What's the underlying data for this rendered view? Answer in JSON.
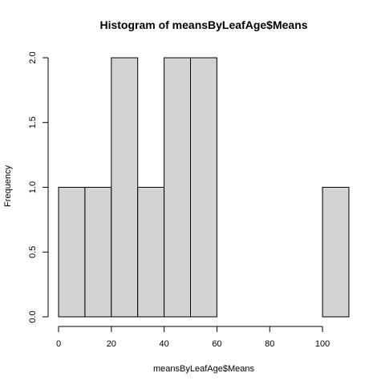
{
  "chart_data": {
    "type": "bar",
    "subtype": "histogram",
    "title": "Histogram of meansByLeafAge$Means",
    "xlabel": "meansByLeafAge$Means",
    "ylabel": "Frequency",
    "bins": [
      {
        "start": 0,
        "end": 10,
        "count": 1
      },
      {
        "start": 10,
        "end": 20,
        "count": 1
      },
      {
        "start": 20,
        "end": 30,
        "count": 2
      },
      {
        "start": 30,
        "end": 40,
        "count": 1
      },
      {
        "start": 40,
        "end": 50,
        "count": 2
      },
      {
        "start": 50,
        "end": 60,
        "count": 2
      },
      {
        "start": 60,
        "end": 70,
        "count": 0
      },
      {
        "start": 70,
        "end": 80,
        "count": 0
      },
      {
        "start": 80,
        "end": 90,
        "count": 0
      },
      {
        "start": 90,
        "end": 100,
        "count": 0
      },
      {
        "start": 100,
        "end": 110,
        "count": 1
      }
    ],
    "xlim": [
      0,
      110
    ],
    "ylim": [
      0,
      2
    ],
    "x_ticks": [
      "0",
      "20",
      "40",
      "60",
      "80",
      "100"
    ],
    "y_ticks": [
      "0.0",
      "0.5",
      "1.0",
      "1.5",
      "2.0"
    ],
    "grid": false,
    "bar_color": "#d3d3d3"
  }
}
